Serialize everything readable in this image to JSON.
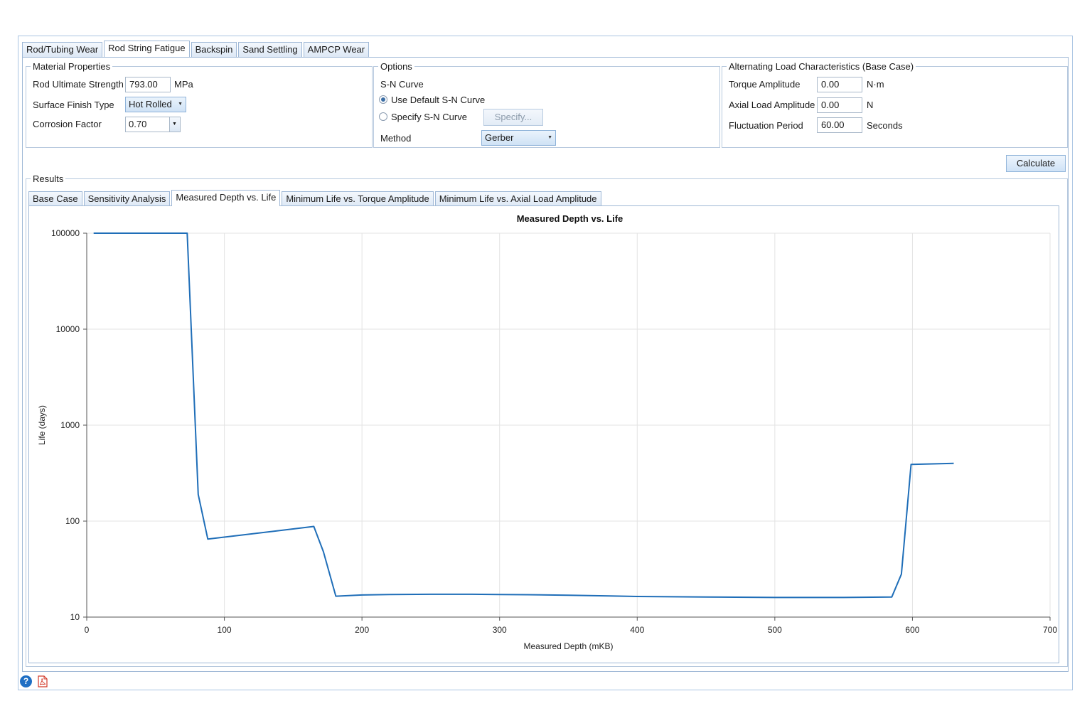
{
  "tabs": [
    "Rod/Tubing Wear",
    "Rod String Fatigue",
    "Backspin",
    "Sand Settling",
    "AMPCP Wear"
  ],
  "active_tab": 1,
  "material": {
    "legend": "Material Properties",
    "rus_label": "Rod Ultimate Strength",
    "rus_value": "793.00",
    "rus_unit": "MPa",
    "surface_label": "Surface Finish Type",
    "surface_value": "Hot Rolled",
    "corrosion_label": "Corrosion Factor",
    "corrosion_value": "0.70"
  },
  "options": {
    "legend": "Options",
    "sn_label": "S-N Curve",
    "default_sn": "Use Default S-N Curve",
    "specify_sn": "Specify S-N Curve",
    "specify_button": "Specify...",
    "method_label": "Method",
    "method_value": "Gerber"
  },
  "alternating": {
    "legend": "Alternating Load Characteristics (Base Case)",
    "torque_label": "Torque Amplitude",
    "torque_value": "0.00",
    "torque_unit": "N·m",
    "axial_label": "Axial Load Amplitude",
    "axial_value": "0.00",
    "axial_unit": "N",
    "period_label": "Fluctuation Period",
    "period_value": "60.00",
    "period_unit": "Seconds"
  },
  "calculate_label": "Calculate",
  "results": {
    "legend": "Results",
    "tabs": [
      "Base Case",
      "Sensitivity Analysis",
      "Measured Depth vs. Life",
      "Minimum Life vs. Torque Amplitude",
      "Minimum Life vs. Axial Load Amplitude"
    ],
    "active_tab": 2
  },
  "chart_data": {
    "type": "line",
    "title": "Measured Depth vs. Life",
    "xlabel": "Measured Depth (mKB)",
    "ylabel": "Life (days)",
    "xlim": [
      0,
      700
    ],
    "ylim": [
      10,
      100000
    ],
    "yscale": "log",
    "grid": true,
    "x_ticks": [
      "0",
      "100",
      "200",
      "300",
      "400",
      "500",
      "600",
      "700"
    ],
    "y_ticks": [
      "10",
      "100",
      "1000",
      "10000",
      "100000"
    ],
    "series": [
      {
        "color": "#1f6eb8",
        "x": [
          5,
          73,
          81,
          88,
          165,
          172,
          181,
          200,
          220,
          250,
          280,
          300,
          320,
          350,
          380,
          400,
          450,
          500,
          550,
          585,
          592,
          599,
          630
        ],
        "y": [
          100000,
          100000,
          190,
          65,
          88,
          48,
          16.5,
          17,
          17.2,
          17.3,
          17.3,
          17.2,
          17.1,
          16.9,
          16.6,
          16.4,
          16.2,
          16.0,
          16.0,
          16.2,
          28,
          390,
          400
        ]
      }
    ]
  }
}
